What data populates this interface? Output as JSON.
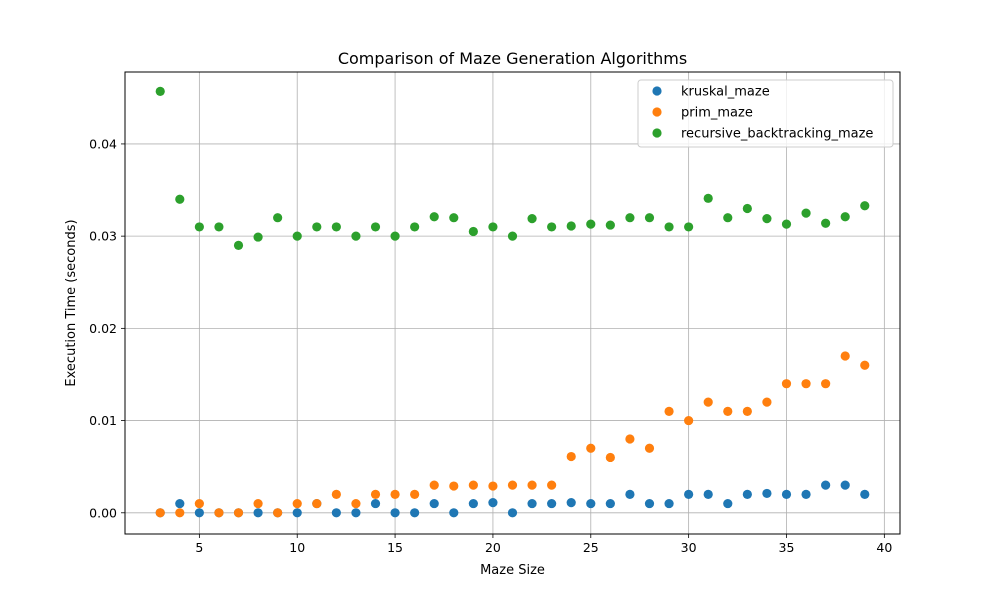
{
  "chart_data": {
    "type": "scatter",
    "title": "Comparison of Maze Generation Algorithms",
    "xlabel": "Maze Size",
    "ylabel": "Execution Time (seconds)",
    "xlim": [
      1.2,
      40.8
    ],
    "ylim": [
      -0.0023,
      0.0478
    ],
    "xticks": [
      5,
      10,
      15,
      20,
      25,
      30,
      35,
      40
    ],
    "xtick_labels": [
      "5",
      "10",
      "15",
      "20",
      "25",
      "30",
      "35",
      "40"
    ],
    "yticks": [
      0.0,
      0.01,
      0.02,
      0.03,
      0.04
    ],
    "ytick_labels": [
      "0.00",
      "0.01",
      "0.02",
      "0.03",
      "0.04"
    ],
    "grid": true,
    "legend_position": "top-right",
    "x": [
      3,
      4,
      5,
      6,
      7,
      8,
      9,
      10,
      11,
      12,
      13,
      14,
      15,
      16,
      17,
      18,
      19,
      20,
      21,
      22,
      23,
      24,
      25,
      26,
      27,
      28,
      29,
      30,
      31,
      32,
      33,
      34,
      35,
      36,
      37,
      38,
      39
    ],
    "series": [
      {
        "name": "kruskal_maze",
        "color": "#1f77b4",
        "values": [
          0.0,
          0.001,
          0.0,
          0.0,
          0.0,
          0.0,
          0.0,
          0.0,
          0.001,
          0.0,
          0.0,
          0.001,
          0.0,
          0.0,
          0.001,
          0.0,
          0.001,
          0.0011,
          0.0,
          0.001,
          0.001,
          0.0011,
          0.001,
          0.001,
          0.002,
          0.001,
          0.001,
          0.002,
          0.002,
          0.001,
          0.002,
          0.0021,
          0.002,
          0.002,
          0.003,
          0.003,
          0.002
        ]
      },
      {
        "name": "prim_maze",
        "color": "#ff7f0e",
        "values": [
          0.0,
          0.0,
          0.001,
          0.0,
          0.0,
          0.001,
          0.0,
          0.001,
          0.001,
          0.002,
          0.001,
          0.002,
          0.002,
          0.002,
          0.003,
          0.0029,
          0.003,
          0.0029,
          0.003,
          0.003,
          0.003,
          0.0061,
          0.007,
          0.006,
          0.008,
          0.007,
          0.011,
          0.01,
          0.012,
          0.011,
          0.011,
          0.012,
          0.014,
          0.014,
          0.014,
          0.017,
          0.016
        ]
      },
      {
        "name": "recursive_backtracking_maze",
        "color": "#2ca02c",
        "values": [
          0.0457,
          0.034,
          0.031,
          0.031,
          0.029,
          0.0299,
          0.032,
          0.03,
          0.031,
          0.031,
          0.03,
          0.031,
          0.03,
          0.031,
          0.0321,
          0.032,
          0.0305,
          0.031,
          0.03,
          0.0319,
          0.031,
          0.0311,
          0.0313,
          0.0312,
          0.032,
          0.032,
          0.031,
          0.031,
          0.0341,
          0.032,
          0.033,
          0.0319,
          0.0313,
          0.0325,
          0.0314,
          0.0321,
          0.0333
        ]
      }
    ]
  }
}
